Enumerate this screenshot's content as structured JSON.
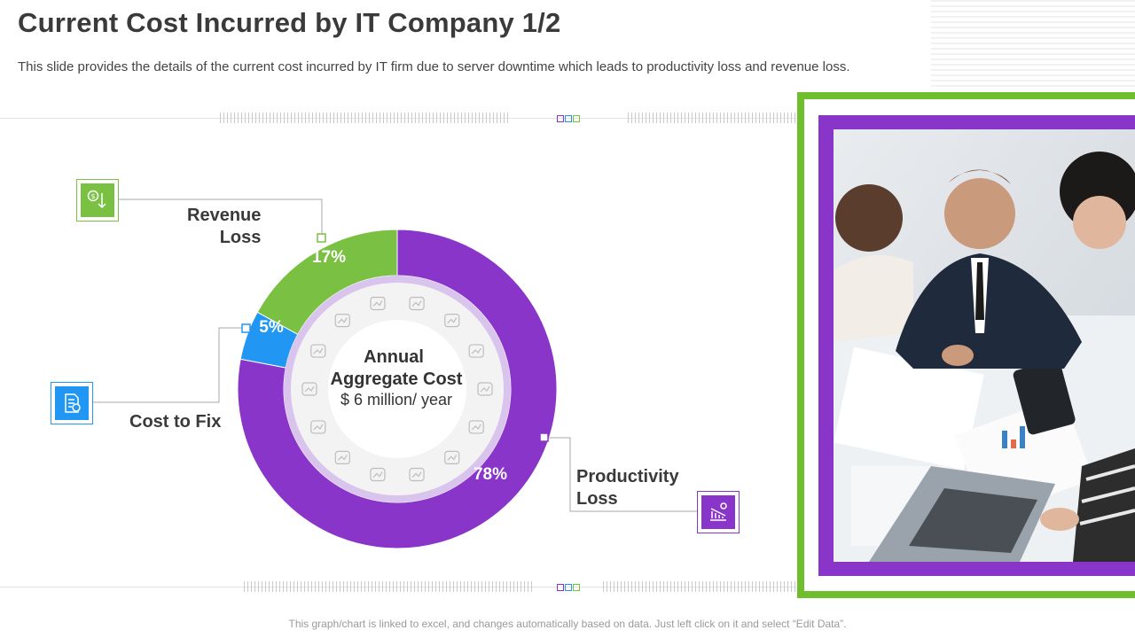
{
  "page": {
    "title": "Current Cost Incurred by IT Company 1/2",
    "subtitle": "This slide provides the details of the current cost incurred by IT firm due to server downtime which leads to productivity loss and revenue loss.",
    "footer": "This graph/chart is linked to excel, and changes automatically based on data. Just left click on it and select “Edit Data”."
  },
  "chart_data": {
    "type": "pie",
    "variant": "donut",
    "center": {
      "title_line1": "Annual",
      "title_line2": "Aggregate Cost",
      "value": "$ 6 million/ year"
    },
    "slices": [
      {
        "name": "Revenue Loss",
        "label_line1": "Revenue",
        "label_line2": "Loss",
        "value": 17,
        "display": "17%",
        "color": "#7ac143",
        "icon": "dollar-down-icon"
      },
      {
        "name": "Cost to Fix",
        "label_line1": "Cost to Fix",
        "label_line2": "",
        "value": 5,
        "display": "5%",
        "color": "#2196f3",
        "icon": "document-dollar-icon"
      },
      {
        "name": "Productivity Loss",
        "label_line1": "Productivity",
        "label_line2": "Loss",
        "value": 78,
        "display": "78%",
        "color": "#8a35c9",
        "icon": "declining-chart-gear-icon"
      }
    ]
  },
  "colors": {
    "green": "#7ac143",
    "blue": "#2196f3",
    "purple": "#8a35c9",
    "frame_green": "#6ebe2e"
  },
  "photo": {
    "icon": "business-team-photo"
  }
}
